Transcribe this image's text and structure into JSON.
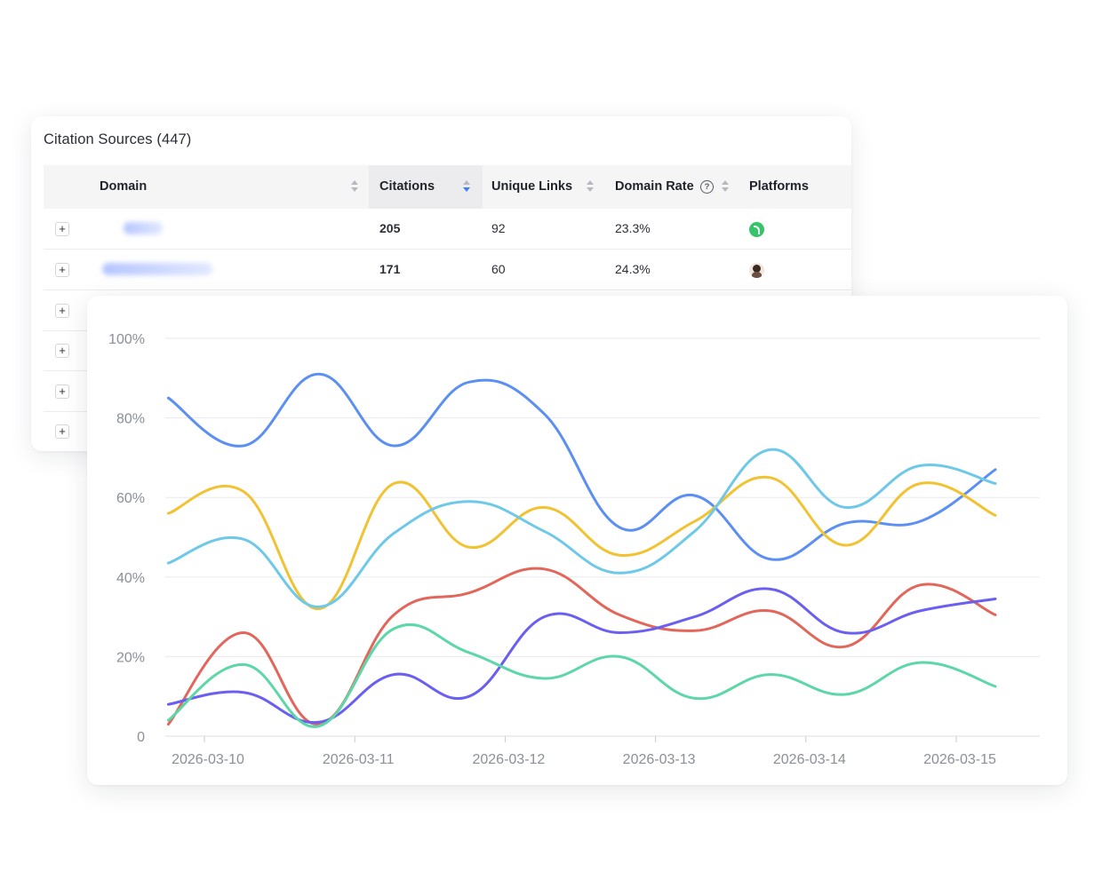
{
  "table": {
    "title": "Citation Sources (447)",
    "columns": [
      {
        "key": "domain",
        "label": "Domain"
      },
      {
        "key": "citations",
        "label": "Citations"
      },
      {
        "key": "unique_links",
        "label": "Unique Links"
      },
      {
        "key": "domain_rate",
        "label": "Domain Rate"
      },
      {
        "key": "platforms",
        "label": "Platforms"
      }
    ],
    "help_glyph": "?",
    "expand_glyph": "+",
    "rows": [
      {
        "citations": "205",
        "unique_links": "92",
        "domain_rate": "23.3%",
        "platform_icon": "green-s-platform-icon"
      },
      {
        "citations": "171",
        "unique_links": "60",
        "domain_rate": "24.3%",
        "platform_icon": "avatar-platform-icon"
      },
      {},
      {},
      {},
      {}
    ]
  },
  "chart_data": {
    "type": "line",
    "x": [
      "2026-03-10",
      "2026-03-11",
      "2026-03-12",
      "2026-03-13",
      "2026-03-14",
      "2026-03-15"
    ],
    "ylim": [
      0,
      100
    ],
    "yticks": [
      0,
      20,
      40,
      60,
      80,
      100
    ],
    "ytick_labels": [
      "0",
      "20%",
      "40%",
      "60%",
      "80%",
      "100%"
    ],
    "grid": true,
    "legend": "none",
    "series": [
      {
        "color": "#5b8ff2",
        "points": [
          [
            -0.24,
            85
          ],
          [
            0.26,
            73
          ],
          [
            0.76,
            91
          ],
          [
            1.26,
            73
          ],
          [
            1.76,
            89
          ],
          [
            2.26,
            81
          ],
          [
            2.76,
            52.5
          ],
          [
            3.26,
            60.5
          ],
          [
            3.76,
            44.5
          ],
          [
            4.26,
            53.5
          ],
          [
            4.76,
            54
          ],
          [
            5.26,
            67
          ]
        ]
      },
      {
        "color": "#f1c232",
        "points": [
          [
            -0.24,
            56
          ],
          [
            0.26,
            61.5
          ],
          [
            0.76,
            32
          ],
          [
            1.26,
            63.5
          ],
          [
            1.76,
            47.5
          ],
          [
            2.26,
            57.5
          ],
          [
            2.76,
            45.5
          ],
          [
            3.26,
            54
          ],
          [
            3.76,
            65
          ],
          [
            4.26,
            48
          ],
          [
            4.76,
            63.5
          ],
          [
            5.26,
            55.5
          ]
        ]
      },
      {
        "color": "#6ec8e8",
        "points": [
          [
            -0.24,
            43.5
          ],
          [
            0.26,
            49.5
          ],
          [
            0.76,
            32.5
          ],
          [
            1.26,
            51
          ],
          [
            1.76,
            59
          ],
          [
            2.26,
            51.5
          ],
          [
            2.76,
            41
          ],
          [
            3.26,
            51.5
          ],
          [
            3.76,
            72
          ],
          [
            4.26,
            57.5
          ],
          [
            4.76,
            68
          ],
          [
            5.26,
            63.5
          ]
        ]
      },
      {
        "color": "#e2665a",
        "points": [
          [
            -0.24,
            3
          ],
          [
            0.26,
            26
          ],
          [
            0.76,
            3
          ],
          [
            1.26,
            30.5
          ],
          [
            1.76,
            36
          ],
          [
            2.26,
            42
          ],
          [
            2.76,
            30.5
          ],
          [
            3.26,
            26.5
          ],
          [
            3.76,
            31.5
          ],
          [
            4.26,
            22.5
          ],
          [
            4.76,
            38
          ],
          [
            5.26,
            30.5
          ]
        ]
      },
      {
        "color": "#6a5ff0",
        "points": [
          [
            -0.24,
            8
          ],
          [
            0.26,
            11
          ],
          [
            0.76,
            3.5
          ],
          [
            1.26,
            15.5
          ],
          [
            1.76,
            10
          ],
          [
            2.26,
            30
          ],
          [
            2.76,
            26
          ],
          [
            3.26,
            30
          ],
          [
            3.76,
            37
          ],
          [
            4.26,
            26
          ],
          [
            4.76,
            31.5
          ],
          [
            5.26,
            34.5
          ]
        ]
      },
      {
        "color": "#5dd6a8",
        "points": [
          [
            -0.24,
            4
          ],
          [
            0.26,
            18
          ],
          [
            0.76,
            2.5
          ],
          [
            1.26,
            27
          ],
          [
            1.76,
            21
          ],
          [
            2.26,
            14.5
          ],
          [
            2.76,
            20
          ],
          [
            3.26,
            9.5
          ],
          [
            3.76,
            15.5
          ],
          [
            4.26,
            10.5
          ],
          [
            4.76,
            18.5
          ],
          [
            5.26,
            12.5
          ]
        ]
      }
    ]
  }
}
